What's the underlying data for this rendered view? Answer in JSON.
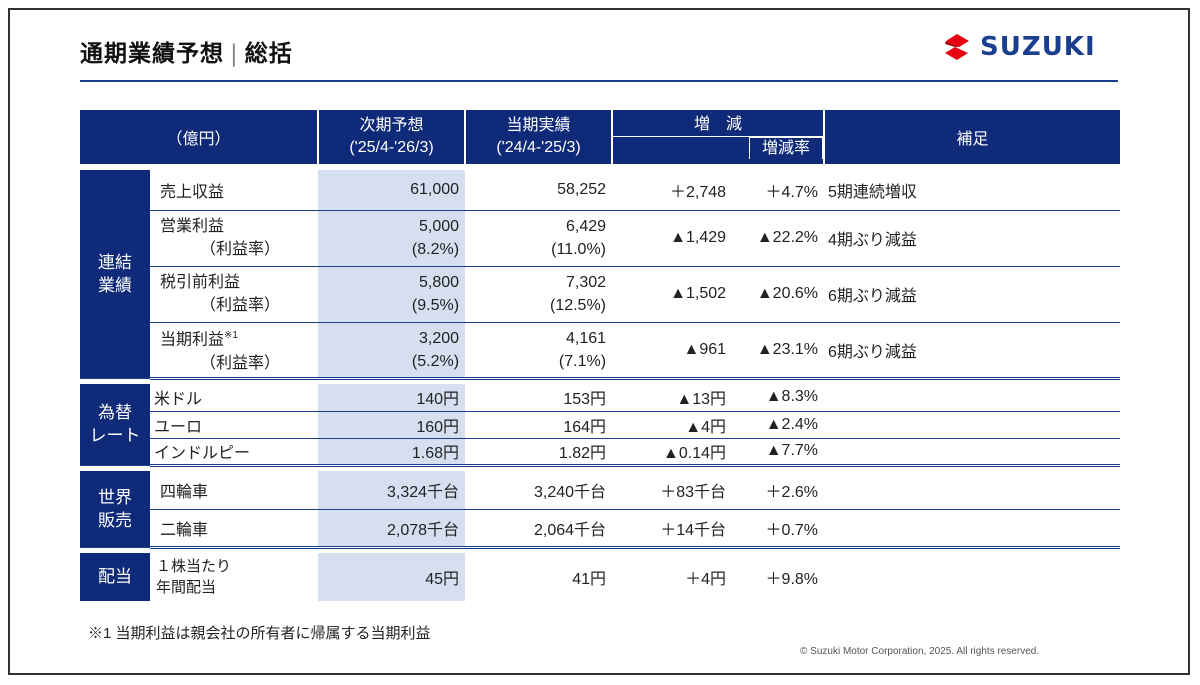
{
  "title": {
    "main": "通期業績予想",
    "divider": "|",
    "sub": "総括"
  },
  "brand": {
    "name": "SUZUKI",
    "color": "#1b3f8f",
    "mark_color": "#e60012",
    "icon": "suzuki-s-logo"
  },
  "header": {
    "unit": "（億円）",
    "forecast_line1": "次期予想",
    "forecast_line2": "('25/4-'26/3)",
    "actual_line1": "当期実績",
    "actual_line2": "('24/4-'25/3)",
    "change": "増　減",
    "change_rate": "増減率",
    "notes": "補足"
  },
  "groups": {
    "consolidated": [
      "連結",
      "業績"
    ],
    "fx": [
      "為替",
      "レート"
    ],
    "sales": [
      "世界",
      "販売"
    ],
    "dividend": "配当"
  },
  "consolidated_rows": [
    {
      "item": "売上収益",
      "forecast": "61,000",
      "actual": "58,252",
      "change": "＋2,748",
      "rate": "＋4.7%",
      "note": "5期連続増収"
    },
    {
      "item": "営業利益",
      "item_sub": "（利益率）",
      "forecast": "5,000",
      "forecast_sub": "(8.2%)",
      "actual": "6,429",
      "actual_sub": "(11.0%)",
      "change": "▲1,429",
      "rate": "▲22.2%",
      "note": "4期ぶり減益"
    },
    {
      "item": "税引前利益",
      "item_sub": "（利益率）",
      "forecast": "5,800",
      "forecast_sub": "(9.5%)",
      "actual": "7,302",
      "actual_sub": "(12.5%)",
      "change": "▲1,502",
      "rate": "▲20.6%",
      "note": "6期ぶり減益"
    },
    {
      "item": "当期利益",
      "item_mark": "※1",
      "item_sub": "（利益率）",
      "forecast": "3,200",
      "forecast_sub": "(5.2%)",
      "actual": "4,161",
      "actual_sub": "(7.1%)",
      "change": "▲961",
      "rate": "▲23.1%",
      "note": "6期ぶり減益"
    }
  ],
  "fx_rows": [
    {
      "item": "米ドル",
      "forecast": "140円",
      "actual": "153円",
      "change": "▲13円",
      "rate": "▲8.3%",
      "note": ""
    },
    {
      "item": "ユーロ",
      "forecast": "160円",
      "actual": "164円",
      "change": "▲4円",
      "rate": "▲2.4%",
      "note": ""
    },
    {
      "item": "インドルピー",
      "forecast": "1.68円",
      "actual": "1.82円",
      "change": "▲0.14円",
      "rate": "▲7.7%",
      "note": ""
    }
  ],
  "sales_rows": [
    {
      "item": "四輪車",
      "forecast": "3,324千台",
      "actual": "3,240千台",
      "change": "＋83千台",
      "rate": "＋2.6%",
      "note": ""
    },
    {
      "item": "二輪車",
      "forecast": "2,078千台",
      "actual": "2,064千台",
      "change": "＋14千台",
      "rate": "＋0.7%",
      "note": ""
    }
  ],
  "dividend_row": {
    "item_line1": "１株当たり",
    "item_line2": "年間配当",
    "forecast": "45円",
    "actual": "41円",
    "change": "＋4円",
    "rate": "＋9.8%",
    "note": ""
  },
  "footnote": "※1 当期利益は親会社の所有者に帰属する当期利益",
  "copyright": "© Suzuki Motor Corporation, 2025. All rights reserved.",
  "colors": {
    "header_bg": "#0e2a78",
    "forecast_bg": "#d6dff0",
    "rule": "#1b3f8f"
  }
}
